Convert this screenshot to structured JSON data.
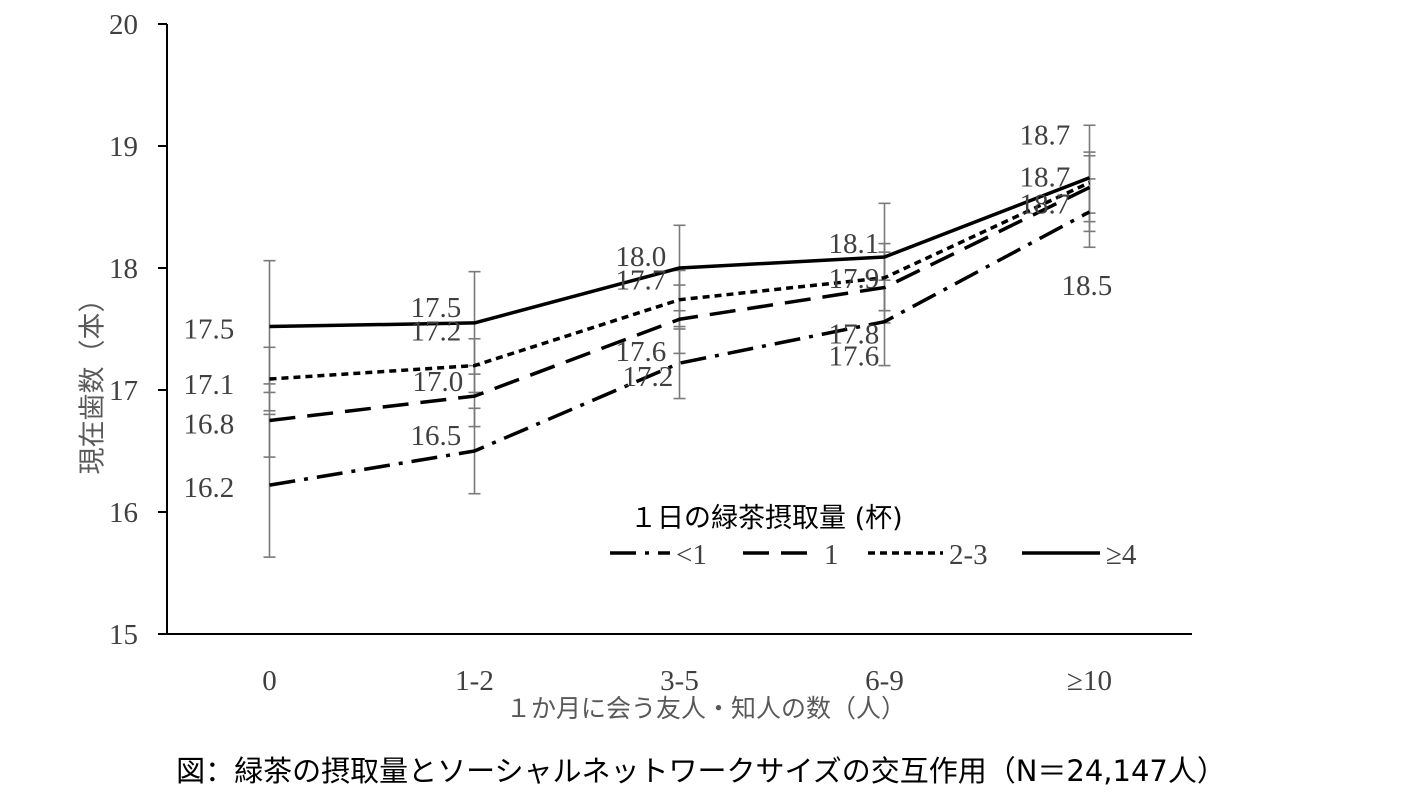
{
  "caption": "図：緑茶の摂取量とソーシャルネットワークサイズの交互作用（N＝24,147人）",
  "chart_data": {
    "type": "line",
    "title": "",
    "xlabel": "１か月に会う友人・知人の数（人）",
    "ylabel": "現在歯数（本）",
    "categories": [
      "0",
      "1-2",
      "3-5",
      "6-9",
      "≥10"
    ],
    "ylim": [
      15,
      20
    ],
    "yticks": [
      "15",
      "16",
      "17",
      "18",
      "19",
      "20"
    ],
    "grid": false,
    "legend": {
      "title": "１日の緑茶摂取量 (杯)",
      "placement": "center-right"
    },
    "series": [
      {
        "name": "<1",
        "dash": "dash-dot",
        "values": [
          16.22,
          16.5,
          17.22,
          17.56,
          18.46
        ],
        "labels": [
          "16.2",
          "16.5",
          "17.2",
          "17.6",
          "18.5"
        ],
        "err_low": [
          15.63,
          16.15,
          16.93,
          17.2,
          18.17
        ],
        "err_high": [
          16.8,
          16.85,
          17.52,
          17.9,
          18.73
        ]
      },
      {
        "name": "1",
        "dash": "long-dash",
        "values": [
          16.75,
          16.95,
          17.58,
          17.84,
          18.66
        ],
        "labels": [
          "16.8",
          "17.0",
          "17.6",
          "17.8",
          "18.7"
        ],
        "err_low": [
          16.45,
          16.7,
          17.3,
          17.55,
          18.38
        ],
        "err_high": [
          17.05,
          17.2,
          17.86,
          18.13,
          18.92
        ]
      },
      {
        "name": "2-3",
        "dash": "short-dash",
        "values": [
          17.09,
          17.2,
          17.74,
          17.92,
          18.7
        ],
        "labels": [
          "17.1",
          "17.2",
          "17.7",
          "17.9",
          "18.7"
        ],
        "err_low": [
          16.83,
          16.98,
          17.5,
          17.65,
          18.45
        ],
        "err_high": [
          17.35,
          17.42,
          17.98,
          18.2,
          18.95
        ]
      },
      {
        "name": "≥4",
        "dash": "solid",
        "values": [
          17.52,
          17.55,
          18.0,
          18.09,
          18.74
        ],
        "labels": [
          "17.5",
          "17.5",
          "18.0",
          "18.1",
          "18.7"
        ],
        "err_low": [
          16.98,
          17.13,
          17.65,
          17.65,
          18.3
        ],
        "err_high": [
          18.06,
          17.97,
          18.35,
          18.53,
          19.17
        ]
      }
    ]
  }
}
